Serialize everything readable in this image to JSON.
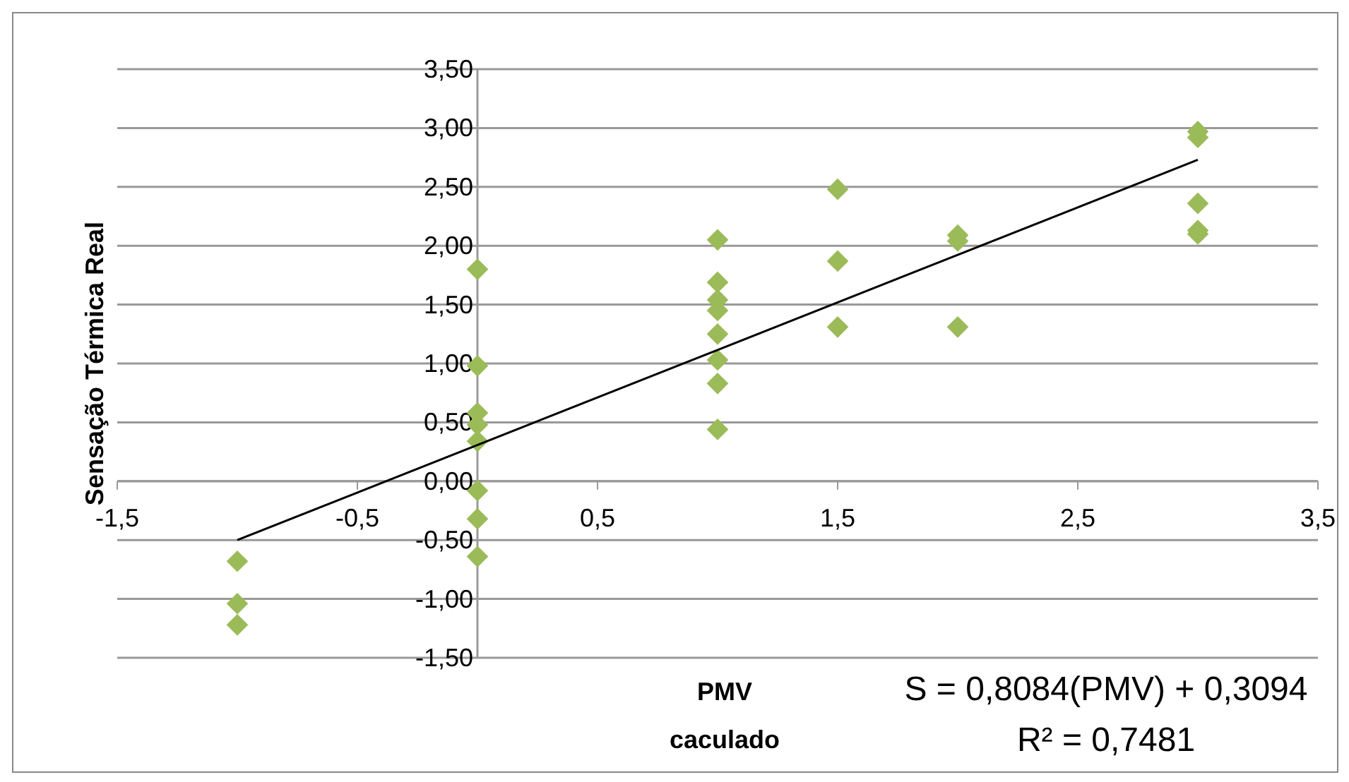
{
  "chart_data": {
    "type": "scatter",
    "ylabel": "Sensação Térmica Real",
    "xlabel": "PMV caculado",
    "xlim": [
      -1.5,
      3.5
    ],
    "xticks": [
      {
        "value": -1.5,
        "label": "-1,5"
      },
      {
        "value": -0.5,
        "label": "-0,5"
      },
      {
        "value": 0.5,
        "label": "0,5"
      },
      {
        "value": 1.5,
        "label": "1,5"
      },
      {
        "value": 2.5,
        "label": "2,5"
      },
      {
        "value": 3.5,
        "label": "3,5"
      }
    ],
    "ylim": [
      -1.5,
      3.5
    ],
    "yticks": [
      {
        "value": -1.5,
        "label": "-1,50"
      },
      {
        "value": -1,
        "label": "-1,00"
      },
      {
        "value": -0.5,
        "label": "-0,50"
      },
      {
        "value": 0,
        "label": "0,00"
      },
      {
        "value": 0.5,
        "label": "0,50"
      },
      {
        "value": 1,
        "label": "1,00"
      },
      {
        "value": 1.5,
        "label": "1,50"
      },
      {
        "value": 2,
        "label": "2,00"
      },
      {
        "value": 2.5,
        "label": "2,50"
      },
      {
        "value": 3,
        "label": "3,00"
      },
      {
        "value": 3.5,
        "label": "3,50"
      }
    ],
    "grid": "y",
    "series": [
      {
        "marker": "diamond",
        "color": "#9bbb59",
        "x": [
          -1,
          -1,
          -1,
          0,
          0,
          0,
          0,
          0,
          0,
          0,
          0,
          1,
          1,
          1,
          1,
          1,
          1,
          1,
          1,
          1.5,
          1.5,
          1.5,
          2,
          2,
          2,
          3,
          3,
          3,
          3,
          3
        ],
        "values": [
          -0.68,
          -1.04,
          -1.22,
          1.8,
          0.98,
          0.58,
          0.48,
          0.34,
          -0.08,
          -0.32,
          -0.64,
          2.05,
          1.69,
          1.54,
          1.45,
          1.25,
          1.03,
          0.83,
          0.44,
          2.48,
          1.87,
          1.31,
          2.09,
          2.04,
          1.31,
          2.97,
          2.92,
          2.36,
          2.13,
          2.1
        ]
      },
      {
        "type": "line",
        "marker": "none",
        "color": "#000000",
        "x": [
          -1,
          3
        ],
        "values": [
          -0.5,
          2.73
        ]
      }
    ],
    "annotations": [
      "S = 0,8084(PMV) + 0,3094",
      "R² = 0,7481"
    ]
  }
}
